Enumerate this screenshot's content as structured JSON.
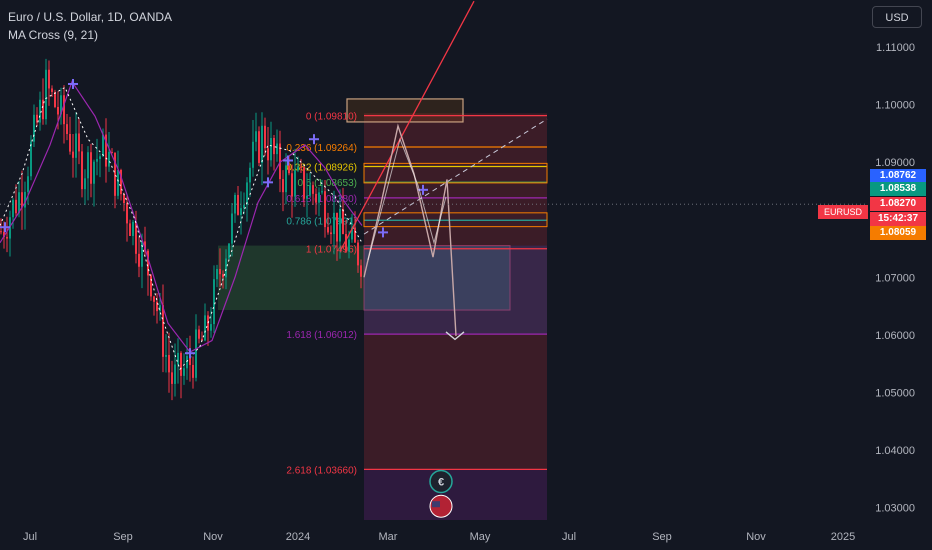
{
  "header": {
    "title": "Euro / U.S. Dollar, 1D, OANDA",
    "indicator": "MA Cross (9, 21)"
  },
  "currency_button": "USD",
  "symbol_tag": "EURUSD",
  "price_tags": [
    {
      "label": "1.08762",
      "price": 1.08762,
      "color": "#2962ff"
    },
    {
      "label": "1.08538",
      "price": 1.08538,
      "color": "#089981"
    },
    {
      "label": "1.08270",
      "price": 1.0827,
      "color": "#f23645"
    },
    {
      "label": "15:42:37",
      "price": 1.0805,
      "color": "#f23645"
    },
    {
      "label": "1.08059",
      "price": 1.08059,
      "color": "#f57c00"
    }
  ],
  "chart_data": {
    "type": "candlestick",
    "y_ticks": [
      "1.11000",
      "1.10000",
      "1.09000",
      "1.08000",
      "1.07000",
      "1.06000",
      "1.05000",
      "1.04000",
      "1.03000"
    ],
    "y_tick_values": [
      1.11,
      1.1,
      1.09,
      1.08,
      1.07,
      1.06,
      1.05,
      1.04,
      1.03
    ],
    "ylim": [
      1.0278,
      1.1182
    ],
    "x_ticks": [
      "Jul",
      "Sep",
      "Nov",
      "2024",
      "Mar",
      "May",
      "Jul",
      "Sep",
      "Nov",
      "2025"
    ],
    "x_tick_index": [
      0,
      2,
      4,
      6,
      8,
      10,
      12,
      14,
      16,
      18
    ],
    "current_price": 1.0827,
    "fib_levels": [
      {
        "label": "0 (1.09810)",
        "price": 1.0981
      },
      {
        "label": "0.236 (1.09264)",
        "price": 1.09264
      },
      {
        "label": "0.382 (1.08926)",
        "price": 1.08926
      },
      {
        "label": "0.5 (1.08653)",
        "price": 1.08653
      },
      {
        "label": "0.618 (1.08380)",
        "price": 1.0838
      },
      {
        "label": "0.786 (1.07991)",
        "price": 1.07991
      },
      {
        "label": "1 (1.07496)",
        "price": 1.07496
      },
      {
        "label": "1.618 (1.06012)",
        "price": 1.06012
      },
      {
        "label": "2.618 (1.03660)",
        "price": 1.0366
      }
    ],
    "legend": "none",
    "grid": "off"
  }
}
